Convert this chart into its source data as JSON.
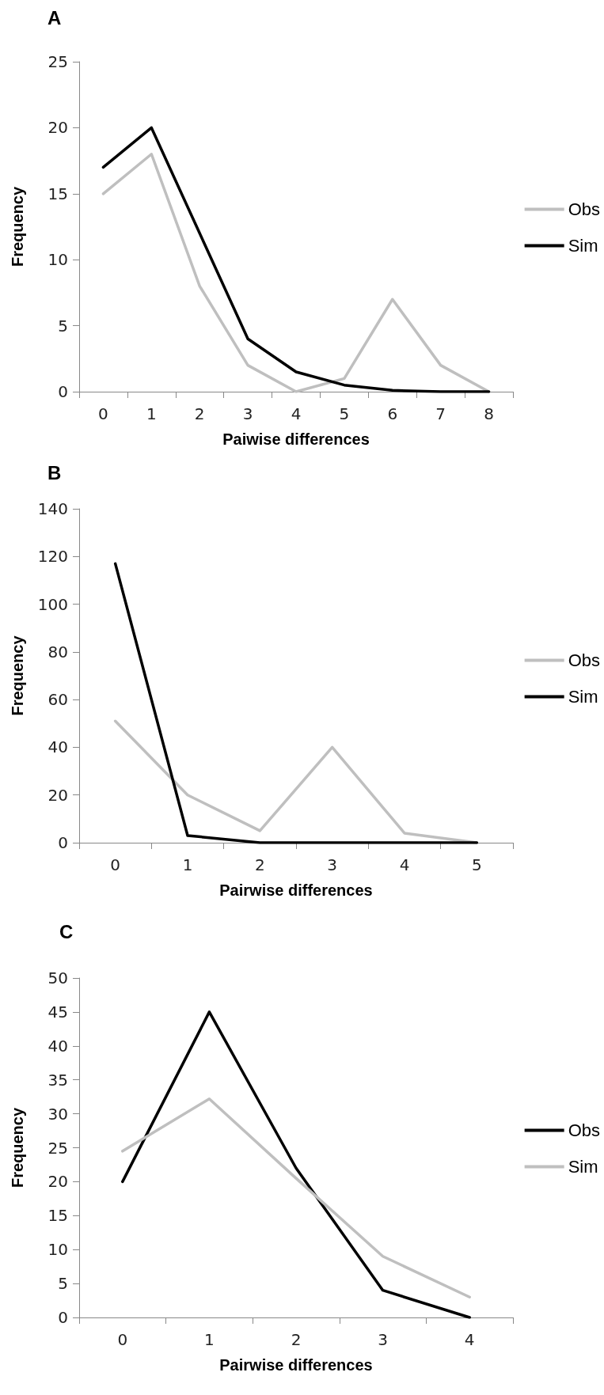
{
  "chart_data": [
    {
      "type": "line",
      "title": "A",
      "xlabel": "Paiwise differences",
      "ylabel": "Frequency",
      "categories": [
        "0",
        "1",
        "2",
        "3",
        "4",
        "5",
        "6",
        "7",
        "8"
      ],
      "ylim": [
        0,
        25
      ],
      "yticks": [
        0,
        5,
        10,
        15,
        20,
        25
      ],
      "grid": false,
      "legend": "right",
      "marker": "none",
      "line_style": "solid",
      "series": [
        {
          "name": "Obs",
          "color": "#bfbfbf",
          "values": [
            15,
            18,
            8,
            2,
            0,
            1,
            7,
            2,
            0
          ]
        },
        {
          "name": "Sim",
          "color": "#000000",
          "values": [
            17,
            20,
            12,
            4,
            1.5,
            0.5,
            0.1,
            0,
            0
          ]
        }
      ]
    },
    {
      "type": "line",
      "title": "B",
      "xlabel": "Pairwise differences",
      "ylabel": "Frequency",
      "categories": [
        "0",
        "1",
        "2",
        "3",
        "4",
        "5"
      ],
      "ylim": [
        0,
        140
      ],
      "yticks": [
        0,
        20,
        40,
        60,
        80,
        100,
        120,
        140
      ],
      "grid": false,
      "legend": "right",
      "marker": "none",
      "line_style": "solid",
      "series": [
        {
          "name": "Obs",
          "color": "#bfbfbf",
          "values": [
            51,
            20,
            5,
            40,
            4,
            0
          ]
        },
        {
          "name": "Sim",
          "color": "#000000",
          "values": [
            117,
            3,
            0,
            0,
            0,
            0
          ]
        }
      ]
    },
    {
      "type": "line",
      "title": "C",
      "xlabel": "Pairwise differences",
      "ylabel": "Frequency",
      "categories": [
        "0",
        "1",
        "2",
        "3",
        "4"
      ],
      "ylim": [
        0,
        50
      ],
      "yticks": [
        0,
        5,
        10,
        15,
        20,
        25,
        30,
        35,
        40,
        45,
        50
      ],
      "grid": false,
      "legend": "right",
      "marker": "none",
      "line_style": "solid",
      "series": [
        {
          "name": "Obs",
          "color": "#000000",
          "values": [
            20,
            45,
            22,
            4,
            0
          ]
        },
        {
          "name": "Sim",
          "color": "#bfbfbf",
          "values": [
            24.5,
            32.2,
            20.5,
            9,
            3
          ]
        }
      ]
    }
  ]
}
